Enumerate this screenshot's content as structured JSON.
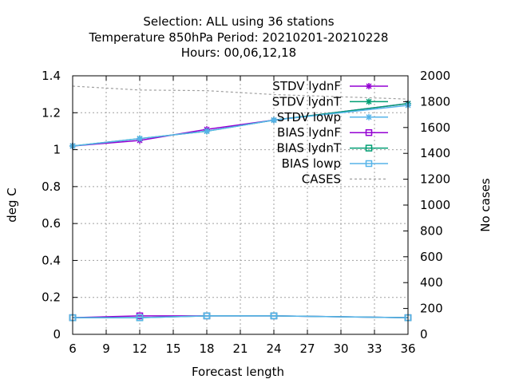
{
  "chart_data": {
    "type": "line",
    "title_lines": [
      "Selection: ALL using    36 stations",
      "Temperature 850hPa   Period: 20210201-20210228",
      "Hours:  00,06,12,18"
    ],
    "xlabel": "Forecast length",
    "ylabel": "deg C",
    "y2label": "No cases",
    "xlim": [
      6,
      36
    ],
    "ylim": [
      0,
      1.4
    ],
    "y2lim": [
      0,
      2000
    ],
    "x_ticks": [
      "6",
      "9",
      "12",
      "15",
      "18",
      "21",
      "24",
      "27",
      "30",
      "33",
      "36"
    ],
    "y_ticks": [
      "0",
      "0.2",
      "0.4",
      "0.6",
      "0.8",
      "1",
      "1.2",
      "1.4"
    ],
    "y2_ticks": [
      "0",
      "200",
      "400",
      "600",
      "800",
      "1000",
      "1200",
      "1400",
      "1600",
      "1800",
      "2000"
    ],
    "grid": true,
    "legend_position": "top-right",
    "series": [
      {
        "name": "STDV lydnF",
        "axis": "y",
        "marker": "star",
        "color": "#9400d3",
        "x": [
          6,
          12,
          18,
          24,
          36
        ],
        "y": [
          1.02,
          1.05,
          1.11,
          1.16,
          1.25
        ]
      },
      {
        "name": "STDV lydnT",
        "axis": "y",
        "marker": "star",
        "color": "#009e73",
        "x": [
          6,
          12,
          18,
          24,
          36
        ],
        "y": [
          1.02,
          1.06,
          1.1,
          1.16,
          1.25
        ]
      },
      {
        "name": "STDV lowp",
        "axis": "y",
        "marker": "star",
        "color": "#56b4e9",
        "x": [
          6,
          12,
          18,
          24,
          36
        ],
        "y": [
          1.02,
          1.06,
          1.1,
          1.16,
          1.24
        ]
      },
      {
        "name": "BIAS lydnF",
        "axis": "y",
        "marker": "square",
        "color": "#9400d3",
        "x": [
          6,
          12,
          18,
          24,
          36
        ],
        "y": [
          0.09,
          0.1,
          0.1,
          0.1,
          0.09
        ]
      },
      {
        "name": "BIAS lydnT",
        "axis": "y",
        "marker": "square",
        "color": "#009e73",
        "x": [
          6,
          12,
          18,
          24,
          36
        ],
        "y": [
          0.09,
          0.09,
          0.1,
          0.1,
          0.09
        ]
      },
      {
        "name": "BIAS lowp",
        "axis": "y",
        "marker": "square",
        "color": "#56b4e9",
        "x": [
          6,
          12,
          18,
          24,
          36
        ],
        "y": [
          0.09,
          0.09,
          0.1,
          0.1,
          0.09
        ]
      },
      {
        "name": "CASES",
        "axis": "y2",
        "marker": "none",
        "color": "#a0a0a0",
        "dashed": true,
        "x": [
          6,
          12,
          18,
          24,
          36
        ],
        "y": [
          1920,
          1890,
          1885,
          1855,
          1820
        ]
      }
    ]
  }
}
